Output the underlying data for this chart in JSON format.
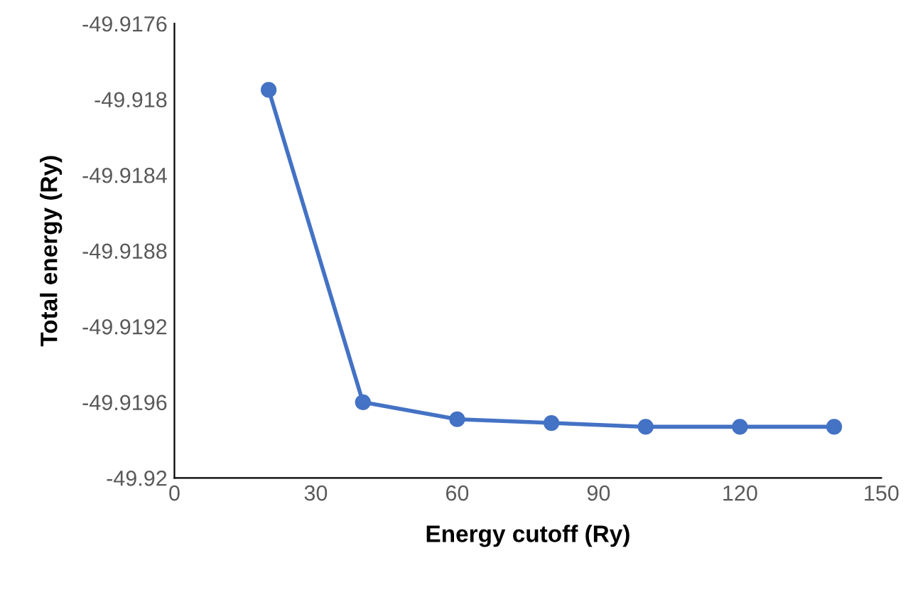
{
  "chart_data": {
    "type": "line",
    "xlabel": "Energy cutoff (Ry)",
    "ylabel": "Total energy (Ry)",
    "x": [
      20,
      40,
      60,
      80,
      100,
      120,
      140
    ],
    "series": [
      {
        "color": "#4472c4",
        "values": [
          -49.91795,
          -49.9196,
          -49.91969,
          -49.91971,
          -49.91973,
          -49.91973,
          -49.91973
        ]
      }
    ],
    "xlim": [
      0,
      150
    ],
    "xticks": [
      0,
      30,
      60,
      90,
      120,
      150
    ],
    "ylim": [
      -49.92,
      -49.9176
    ],
    "yticks": [
      -49.92,
      -49.9196,
      -49.9192,
      -49.9188,
      -49.9184,
      -49.918,
      -49.9176
    ],
    "marker": "circle",
    "line_style": "solid",
    "grid": false,
    "legend": false
  }
}
